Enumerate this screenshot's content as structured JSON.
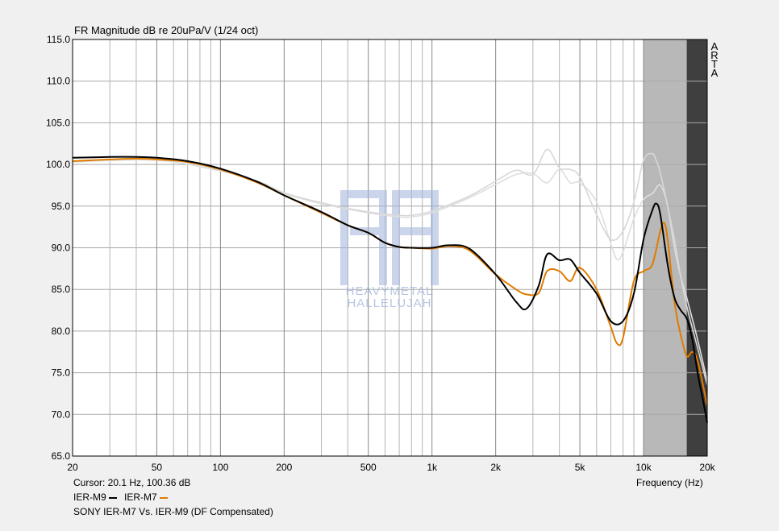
{
  "chart_data": {
    "type": "line",
    "title": "FR Magnitude dB re 20uPa/V (1/24 oct)",
    "xlabel": "Frequency (Hz)",
    "x_scale": "log",
    "xlim": [
      20,
      20000
    ],
    "ylim": [
      65,
      115
    ],
    "x_ticks": [
      20,
      50,
      100,
      200,
      500,
      1000,
      2000,
      5000,
      10000,
      20000
    ],
    "x_tick_labels": [
      "20",
      "50",
      "100",
      "200",
      "500",
      "1k",
      "2k",
      "5k",
      "10k",
      "20k"
    ],
    "y_ticks": [
      65,
      70,
      75,
      80,
      85,
      90,
      95,
      100,
      105,
      110,
      115
    ],
    "y_tick_labels": [
      "65.0",
      "70.0",
      "75.0",
      "80.0",
      "85.0",
      "90.0",
      "95.0",
      "100.0",
      "105.0",
      "110.0",
      "115.0"
    ],
    "grid": true,
    "shaded_bands": [
      {
        "from": 10000,
        "to": 16000,
        "color": "#b8b8b8"
      },
      {
        "from": 16000,
        "to": 20000,
        "color": "#3f3f3f"
      }
    ],
    "series": [
      {
        "name": "IER-M9",
        "color": "#000000",
        "x": [
          20,
          30,
          40,
          50,
          70,
          100,
          150,
          200,
          300,
          400,
          500,
          600,
          700,
          800,
          1000,
          1200,
          1500,
          2000,
          2500,
          2800,
          3200,
          3500,
          4000,
          4500,
          5000,
          6000,
          7000,
          8000,
          9000,
          10000,
          11000,
          11500,
          12000,
          13000,
          14000,
          15000,
          16000,
          17000,
          18000,
          19000,
          20000
        ],
        "y": [
          100.8,
          100.9,
          100.9,
          100.8,
          100.4,
          99.5,
          97.9,
          96.3,
          94.3,
          92.7,
          91.8,
          90.6,
          90.1,
          90.0,
          90.0,
          90.3,
          89.9,
          86.8,
          83.5,
          82.7,
          85.5,
          89.2,
          88.5,
          88.6,
          87.0,
          84.5,
          81.2,
          81.2,
          84.5,
          91.0,
          94.5,
          95.3,
          94.0,
          88.0,
          84.0,
          82.5,
          81.5,
          79.0,
          75.0,
          72.0,
          69.0
        ]
      },
      {
        "name": "IER-M7",
        "color": "#e07b00",
        "x": [
          20,
          30,
          40,
          50,
          70,
          100,
          150,
          200,
          300,
          400,
          500,
          600,
          700,
          800,
          1000,
          1200,
          1500,
          2000,
          2500,
          2800,
          3200,
          3500,
          4000,
          4500,
          5000,
          6000,
          7000,
          7500,
          8000,
          9000,
          10000,
          11000,
          12000,
          12500,
          13000,
          14000,
          15000,
          16000,
          17000,
          18000,
          20000
        ],
        "y": [
          100.4,
          100.6,
          100.7,
          100.6,
          100.3,
          99.4,
          97.8,
          96.3,
          94.2,
          92.7,
          91.8,
          90.6,
          90.1,
          90.0,
          89.9,
          90.2,
          89.7,
          86.8,
          85.0,
          84.4,
          84.6,
          87.2,
          87.2,
          86.0,
          87.6,
          85.0,
          80.5,
          78.5,
          79.2,
          86.0,
          87.2,
          88.0,
          92.0,
          93.0,
          91.0,
          83.5,
          79.5,
          77.0,
          77.5,
          76.5,
          71.0
        ]
      },
      {
        "color": "#d7d7d7",
        "x": [
          20,
          50,
          100,
          150,
          200,
          300,
          500,
          700,
          800,
          1000,
          1500,
          2000,
          2500,
          3000,
          3500,
          4000,
          4500,
          5000,
          6000,
          7000,
          8000,
          9000,
          10000,
          11000,
          11500,
          12000,
          13000,
          14000,
          15000,
          16000,
          18000,
          20000
        ],
        "y": [
          100.8,
          100.8,
          99.3,
          98.0,
          96.6,
          95.4,
          94.3,
          93.9,
          93.9,
          94.4,
          96.2,
          98.0,
          99.3,
          98.8,
          101.8,
          99.6,
          99.4,
          98.5,
          94.0,
          91.0,
          92.0,
          95.5,
          100.5,
          101.3,
          100.4,
          99.0,
          95.0,
          91.0,
          86.5,
          83.0,
          78.0,
          73.5
        ]
      },
      {
        "color": "#dedede",
        "x": [
          20,
          50,
          100,
          150,
          200,
          300,
          500,
          700,
          800,
          1000,
          1500,
          2000,
          2500,
          3000,
          3500,
          4000,
          4500,
          5000,
          6000,
          7000,
          7500,
          8000,
          9000,
          10000,
          11000,
          12000,
          13000,
          14000,
          15000,
          16000,
          18000,
          20000
        ],
        "y": [
          100.3,
          100.5,
          99.2,
          97.9,
          96.5,
          95.3,
          94.2,
          93.7,
          93.7,
          94.2,
          96.0,
          97.6,
          98.8,
          98.9,
          97.8,
          99.4,
          97.8,
          97.8,
          95.5,
          90.5,
          88.6,
          89.5,
          93.5,
          95.8,
          96.5,
          97.5,
          95.0,
          90.0,
          86.5,
          84.0,
          79.0,
          74.0
        ]
      }
    ]
  },
  "arta_label": [
    "A",
    "R",
    "T",
    "A"
  ],
  "cursor_text": "Cursor: 20.1 Hz, 100.36 dB",
  "legend": [
    {
      "name": "IER-M9",
      "color": "#000000"
    },
    {
      "name": "IER-M7",
      "color": "#e07b00"
    }
  ],
  "subtitle": "SONY IER-M7 Vs. IER-M9 (DF Compensated)",
  "watermark": {
    "line1": "HEAVYMETAL",
    "line2": "HALLELUJAH",
    "color": "#9fb4dc"
  }
}
